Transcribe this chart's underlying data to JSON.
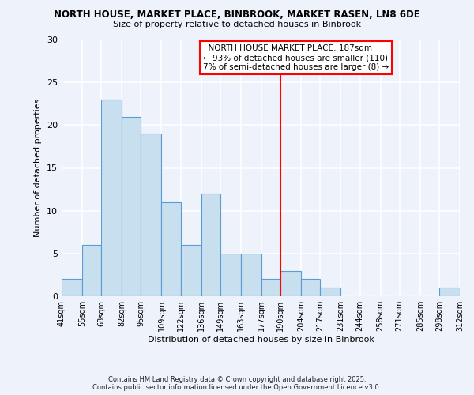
{
  "title": "NORTH HOUSE, MARKET PLACE, BINBROOK, MARKET RASEN, LN8 6DE",
  "subtitle": "Size of property relative to detached houses in Binbrook",
  "xlabel": "Distribution of detached houses by size in Binbrook",
  "ylabel": "Number of detached properties",
  "bin_edges": [
    41,
    55,
    68,
    82,
    95,
    109,
    122,
    136,
    149,
    163,
    177,
    190,
    204,
    217,
    231,
    244,
    258,
    271,
    285,
    298,
    312
  ],
  "bar_heights": [
    2,
    6,
    23,
    21,
    19,
    11,
    6,
    12,
    5,
    5,
    2,
    3,
    2,
    1,
    0,
    0,
    0,
    0,
    0,
    1
  ],
  "bar_color": "#c8dff0",
  "bar_edge_color": "#5b9bd5",
  "vline_x": 190,
  "vline_color": "red",
  "annotation_title": "NORTH HOUSE MARKET PLACE: 187sqm",
  "annotation_line1": "← 93% of detached houses are smaller (110)",
  "annotation_line2": "7% of semi-detached houses are larger (8) →",
  "ylim": [
    0,
    30
  ],
  "tick_labels": [
    "41sqm",
    "55sqm",
    "68sqm",
    "82sqm",
    "95sqm",
    "109sqm",
    "122sqm",
    "136sqm",
    "149sqm",
    "163sqm",
    "177sqm",
    "190sqm",
    "204sqm",
    "217sqm",
    "231sqm",
    "244sqm",
    "258sqm",
    "271sqm",
    "285sqm",
    "298sqm",
    "312sqm"
  ],
  "footnote": "Contains HM Land Registry data © Crown copyright and database right 2025.\nContains public sector information licensed under the Open Government Licence v3.0.",
  "background_color": "#eef2fb",
  "grid_color": "#ffffff",
  "yticks": [
    0,
    5,
    10,
    15,
    20,
    25,
    30
  ]
}
